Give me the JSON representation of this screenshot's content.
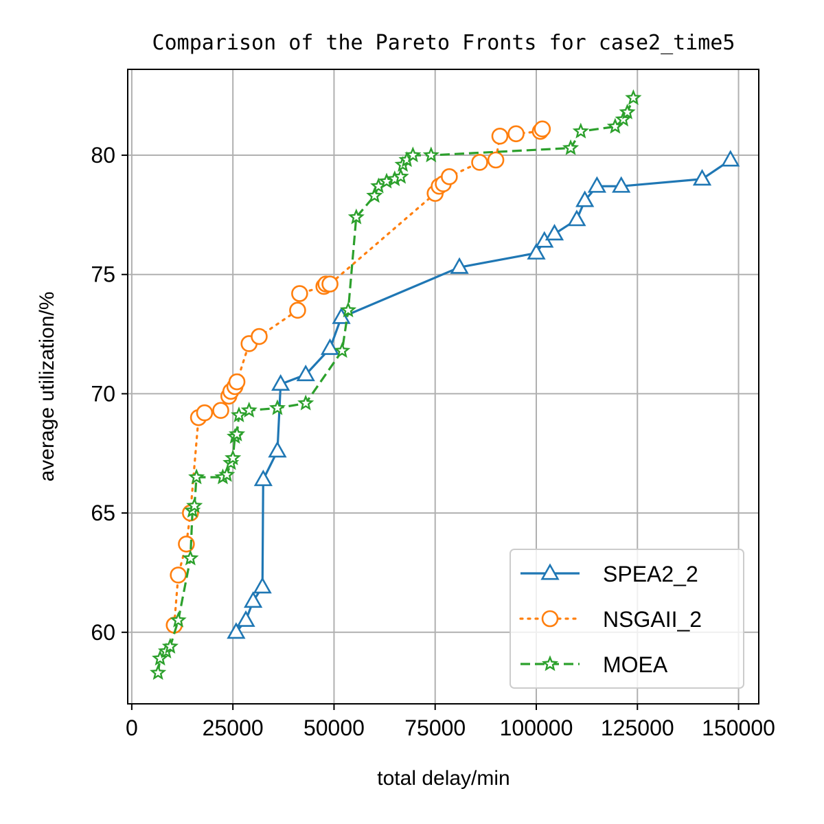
{
  "chart_data": {
    "type": "line",
    "title": "Comparison of the Pareto Fronts for case2_time5",
    "xlabel": "total delay/min",
    "ylabel": "average utilization/%",
    "xlim": [
      -1000,
      155000
    ],
    "ylim": [
      57.0,
      83.6
    ],
    "x_ticks": [
      0,
      25000,
      50000,
      75000,
      100000,
      125000,
      150000
    ],
    "x_tick_labels": [
      "0",
      "25000",
      "50000",
      "75000",
      "100000",
      "125000",
      "150000"
    ],
    "y_ticks": [
      60,
      65,
      70,
      75,
      80
    ],
    "y_tick_labels": [
      "60",
      "65",
      "70",
      "75",
      "80"
    ],
    "grid": true,
    "legend_position": "lower right",
    "series": [
      {
        "name": "SPEA2_2",
        "color": "#1f77b4",
        "line_style": "solid",
        "marker": "triangle",
        "points": [
          [
            25800,
            60.0
          ],
          [
            28200,
            60.5
          ],
          [
            30000,
            61.3
          ],
          [
            32300,
            61.9
          ],
          [
            32500,
            66.4
          ],
          [
            36000,
            67.6
          ],
          [
            36800,
            70.4
          ],
          [
            43000,
            70.8
          ],
          [
            49000,
            71.9
          ],
          [
            51800,
            73.2
          ],
          [
            81000,
            75.3
          ],
          [
            100000,
            75.9
          ],
          [
            102000,
            76.4
          ],
          [
            104500,
            76.7
          ],
          [
            110000,
            77.3
          ],
          [
            112000,
            78.1
          ],
          [
            115000,
            78.7
          ],
          [
            121000,
            78.7
          ],
          [
            141000,
            79.0
          ],
          [
            148000,
            79.8
          ]
        ]
      },
      {
        "name": "NSGAII_2",
        "color": "#ff7f0e",
        "line_style": "dotted",
        "marker": "circle",
        "points": [
          [
            10500,
            60.3
          ],
          [
            11500,
            62.4
          ],
          [
            13500,
            63.7
          ],
          [
            14500,
            65.0
          ],
          [
            16500,
            69.0
          ],
          [
            18000,
            69.2
          ],
          [
            22000,
            69.3
          ],
          [
            24000,
            69.9
          ],
          [
            24500,
            70.1
          ],
          [
            25500,
            70.3
          ],
          [
            26000,
            70.5
          ],
          [
            29000,
            72.1
          ],
          [
            31500,
            72.4
          ],
          [
            41000,
            73.5
          ],
          [
            41500,
            74.2
          ],
          [
            47500,
            74.5
          ],
          [
            48000,
            74.6
          ],
          [
            49000,
            74.6
          ],
          [
            75000,
            78.4
          ],
          [
            76000,
            78.7
          ],
          [
            77000,
            78.8
          ],
          [
            78500,
            79.1
          ],
          [
            86000,
            79.7
          ],
          [
            90000,
            79.8
          ],
          [
            91000,
            80.8
          ],
          [
            95000,
            80.9
          ],
          [
            101000,
            81.0
          ],
          [
            101500,
            81.1
          ]
        ]
      },
      {
        "name": "MOEA",
        "color": "#2ca02c",
        "line_style": "dashed",
        "marker": "star",
        "points": [
          [
            6500,
            58.3
          ],
          [
            7000,
            58.9
          ],
          [
            8500,
            59.2
          ],
          [
            9500,
            59.4
          ],
          [
            11500,
            60.5
          ],
          [
            14500,
            63.1
          ],
          [
            15000,
            65.1
          ],
          [
            15500,
            65.3
          ],
          [
            16000,
            66.5
          ],
          [
            22500,
            66.5
          ],
          [
            23500,
            66.6
          ],
          [
            24500,
            67.1
          ],
          [
            25000,
            67.3
          ],
          [
            25500,
            68.2
          ],
          [
            26000,
            68.3
          ],
          [
            26500,
            69.1
          ],
          [
            29000,
            69.3
          ],
          [
            36000,
            69.4
          ],
          [
            43000,
            69.6
          ],
          [
            52000,
            71.8
          ],
          [
            53500,
            73.5
          ],
          [
            55500,
            77.4
          ],
          [
            60000,
            78.3
          ],
          [
            61000,
            78.7
          ],
          [
            63000,
            78.9
          ],
          [
            65000,
            79.0
          ],
          [
            66500,
            79.1
          ],
          [
            67000,
            79.6
          ],
          [
            68000,
            79.8
          ],
          [
            69500,
            80.0
          ],
          [
            74000,
            80.0
          ],
          [
            108500,
            80.3
          ],
          [
            111000,
            81.0
          ],
          [
            119500,
            81.2
          ],
          [
            121500,
            81.5
          ],
          [
            122500,
            81.8
          ],
          [
            124000,
            82.4
          ]
        ]
      }
    ]
  }
}
